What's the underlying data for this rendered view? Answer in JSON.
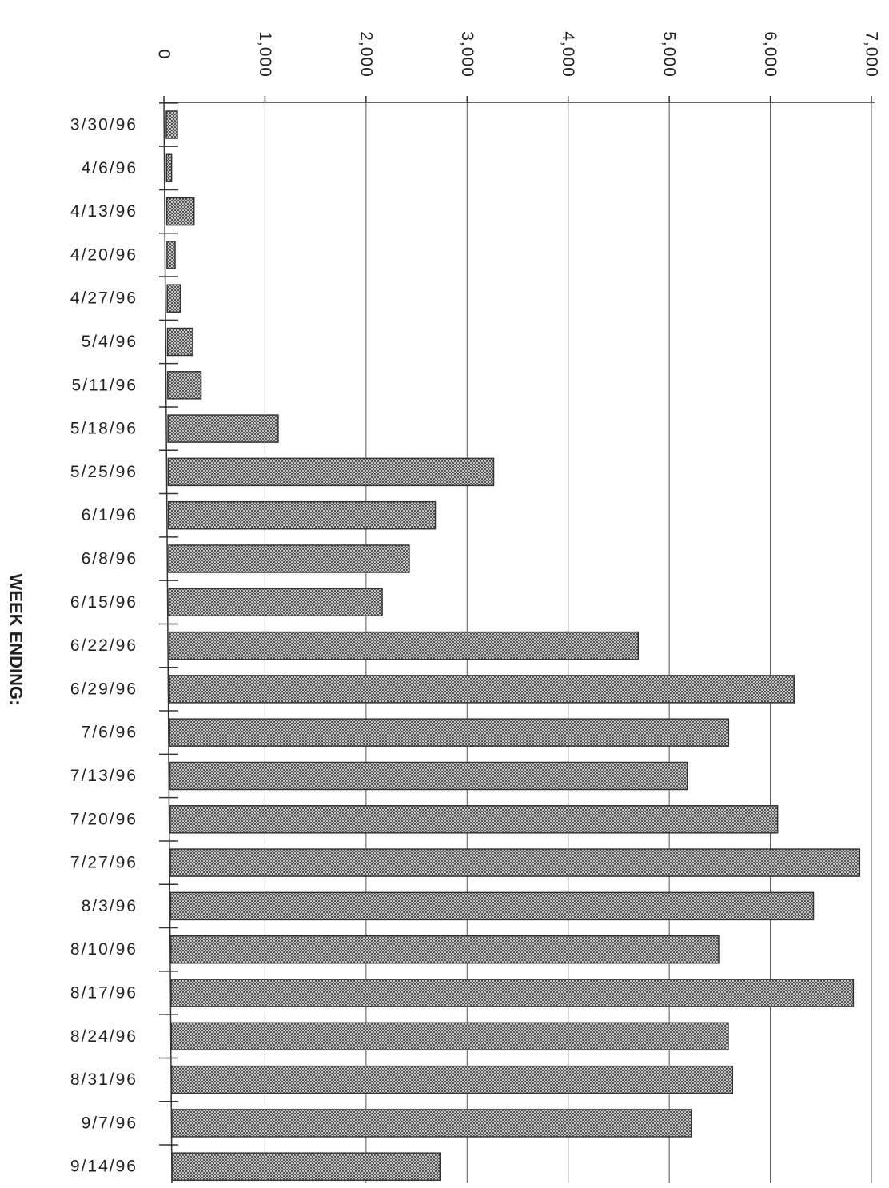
{
  "chart_data": {
    "type": "bar",
    "orientation": "horizontal",
    "title": "",
    "xlabel": "",
    "ylabel": "WEEK ENDING:",
    "xlim": [
      0,
      7000
    ],
    "xticks": [
      "0",
      "1,000",
      "2,000",
      "3,000",
      "4,000",
      "5,000",
      "6,000",
      "7,000"
    ],
    "grid": true,
    "categories": [
      "3/30/96",
      "4/6/96",
      "4/13/96",
      "4/20/96",
      "4/27/96",
      "5/4/96",
      "5/11/96",
      "5/18/96",
      "5/25/96",
      "6/1/96",
      "6/8/96",
      "6/15/96",
      "6/22/96",
      "6/29/96",
      "7/6/96",
      "7/13/96",
      "7/20/96",
      "7/27/96",
      "8/3/96",
      "8/10/96",
      "8/17/96",
      "8/24/96",
      "8/31/96",
      "9/7/96",
      "9/14/96"
    ],
    "values": [
      110,
      50,
      270,
      80,
      130,
      250,
      330,
      1090,
      3220,
      2640,
      2380,
      2110,
      4640,
      6180,
      5530,
      5120,
      6010,
      6820,
      6360,
      5420,
      6750,
      5510,
      5550,
      5140,
      2650
    ],
    "bar_fill": "stippled grey"
  }
}
